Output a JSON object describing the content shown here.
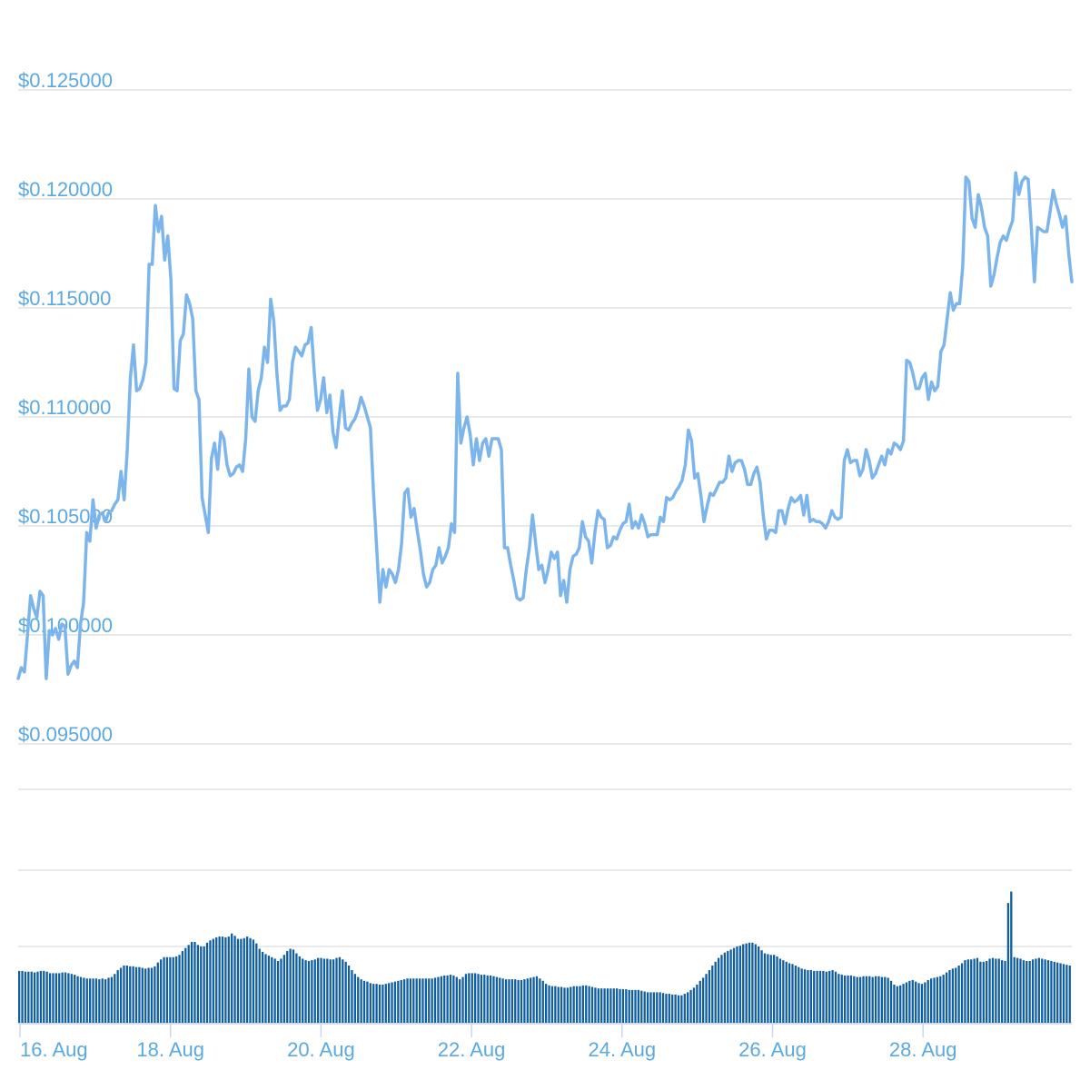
{
  "chart_data": [
    {
      "type": "line",
      "series": [
        {
          "values": [
            0.098,
            0.0985,
            0.0983,
            0.1,
            0.1018,
            0.1012,
            0.1008,
            0.102,
            0.1018,
            0.098,
            0.1002,
            0.1,
            0.1003,
            0.0998,
            0.1005,
            0.1004,
            0.0982,
            0.0986,
            0.0988,
            0.0985,
            0.1005,
            0.1015,
            0.1047,
            0.1043,
            0.1062,
            0.1049,
            0.1055,
            0.1056,
            0.1052,
            0.1056,
            0.1057,
            0.106,
            0.1062,
            0.1075,
            0.1062,
            0.1085,
            0.1118,
            0.1133,
            0.1112,
            0.1113,
            0.1117,
            0.1125,
            0.117,
            0.117,
            0.1197,
            0.1185,
            0.1192,
            0.1172,
            0.1183,
            0.1163,
            0.1113,
            0.1112,
            0.1135,
            0.1138,
            0.1156,
            0.1152,
            0.1145,
            0.1112,
            0.1108,
            0.1063,
            0.1055,
            0.1047,
            0.1081,
            0.1088,
            0.1076,
            0.1093,
            0.109,
            0.1078,
            0.1073,
            0.1074,
            0.1077,
            0.1078,
            0.1075,
            0.109,
            0.1122,
            0.11,
            0.1098,
            0.1112,
            0.1118,
            0.1132,
            0.1125,
            0.1154,
            0.1144,
            0.112,
            0.1103,
            0.1105,
            0.1105,
            0.1108,
            0.1125,
            0.1132,
            0.113,
            0.1128,
            0.1133,
            0.1134,
            0.1141,
            0.112,
            0.1103,
            0.1108,
            0.1118,
            0.1102,
            0.111,
            0.1093,
            0.1086,
            0.11,
            0.1112,
            0.1095,
            0.1094,
            0.1097,
            0.1099,
            0.1103,
            0.1109,
            0.1105,
            0.11,
            0.1095,
            0.1065,
            0.104,
            0.1015,
            0.103,
            0.1022,
            0.103,
            0.1028,
            0.1024,
            0.103,
            0.1042,
            0.1065,
            0.1067,
            0.1054,
            0.1058,
            0.1048,
            0.1039,
            0.1028,
            0.1022,
            0.1024,
            0.103,
            0.1032,
            0.104,
            0.1033,
            0.1036,
            0.104,
            0.1051,
            0.1047,
            0.112,
            0.1088,
            0.1095,
            0.11,
            0.1092,
            0.1078,
            0.109,
            0.108,
            0.1088,
            0.109,
            0.1082,
            0.109,
            0.109,
            0.109,
            0.1085,
            0.104,
            0.104,
            0.1032,
            0.1025,
            0.1017,
            0.1016,
            0.1017,
            0.103,
            0.104,
            0.1055,
            0.1042,
            0.103,
            0.1032,
            0.1024,
            0.103,
            0.1038,
            0.1035,
            0.1038,
            0.1018,
            0.1025,
            0.1015,
            0.103,
            0.1036,
            0.1037,
            0.104,
            0.1052,
            0.1045,
            0.1043,
            0.1033,
            0.1047,
            0.1057,
            0.1054,
            0.1053,
            0.104,
            0.1041,
            0.1045,
            0.1044,
            0.1048,
            0.1051,
            0.1052,
            0.106,
            0.1049,
            0.1052,
            0.1049,
            0.1055,
            0.1051,
            0.1045,
            0.1046,
            0.1046,
            0.1046,
            0.1054,
            0.1052,
            0.1063,
            0.1062,
            0.1063,
            0.1066,
            0.1068,
            0.1071,
            0.1078,
            0.1094,
            0.1089,
            0.1072,
            0.1074,
            0.1064,
            0.1052,
            0.1059,
            0.1065,
            0.1064,
            0.1067,
            0.107,
            0.107,
            0.1072,
            0.1082,
            0.1075,
            0.1079,
            0.108,
            0.108,
            0.1076,
            0.1069,
            0.1069,
            0.1074,
            0.1077,
            0.107,
            0.1055,
            0.1044,
            0.1048,
            0.1048,
            0.1047,
            0.1057,
            0.1057,
            0.1051,
            0.1058,
            0.1063,
            0.1061,
            0.1062,
            0.1064,
            0.1055,
            0.1064,
            0.1052,
            0.1053,
            0.1052,
            0.1052,
            0.1051,
            0.1049,
            0.1052,
            0.1057,
            0.1054,
            0.1053,
            0.1054,
            0.108,
            0.1085,
            0.1079,
            0.108,
            0.108,
            0.1073,
            0.1076,
            0.1085,
            0.108,
            0.1072,
            0.1074,
            0.1078,
            0.1082,
            0.1078,
            0.1085,
            0.1083,
            0.1088,
            0.1087,
            0.1085,
            0.1089,
            0.1126,
            0.1125,
            0.112,
            0.1113,
            0.1113,
            0.1118,
            0.112,
            0.1108,
            0.1116,
            0.1112,
            0.1114,
            0.113,
            0.1133,
            0.1145,
            0.1157,
            0.1149,
            0.1152,
            0.1152,
            0.1169,
            0.121,
            0.1208,
            0.1191,
            0.1187,
            0.1202,
            0.1196,
            0.1187,
            0.1183,
            0.116,
            0.1165,
            0.1173,
            0.118,
            0.1183,
            0.1181,
            0.1186,
            0.119,
            0.1212,
            0.1202,
            0.1208,
            0.121,
            0.1209,
            0.1187,
            0.1162,
            0.1187,
            0.1186,
            0.1185,
            0.1185,
            0.1194,
            0.1204,
            0.1198,
            0.1193,
            0.1187,
            0.1192,
            0.1175,
            0.1162
          ]
        }
      ],
      "y_ticks": [
        "$0.125000",
        "$0.120000",
        "$0.115000",
        "$0.110000",
        "$0.105000",
        "$0.100000",
        "$0.095000"
      ],
      "y_tick_values": [
        0.125,
        0.12,
        0.115,
        0.11,
        0.105,
        0.1,
        0.095
      ],
      "ylim": [
        0.095,
        0.125
      ],
      "grid": true
    },
    {
      "type": "bar",
      "volumes": [
        0.68,
        0.68,
        0.67,
        0.67,
        0.67,
        0.66,
        0.67,
        0.68,
        0.68,
        0.67,
        0.65,
        0.65,
        0.65,
        0.65,
        0.66,
        0.66,
        0.65,
        0.64,
        0.63,
        0.61,
        0.6,
        0.59,
        0.58,
        0.58,
        0.58,
        0.58,
        0.57,
        0.58,
        0.57,
        0.59,
        0.6,
        0.64,
        0.69,
        0.72,
        0.75,
        0.75,
        0.74,
        0.74,
        0.73,
        0.73,
        0.72,
        0.71,
        0.72,
        0.72,
        0.74,
        0.79,
        0.83,
        0.86,
        0.86,
        0.86,
        0.86,
        0.87,
        0.89,
        0.94,
        0.98,
        1.02,
        1.06,
        1.06,
        1.02,
        1.0,
        1.0,
        1.05,
        1.08,
        1.1,
        1.12,
        1.13,
        1.13,
        1.12,
        1.13,
        1.17,
        1.14,
        1.1,
        1.1,
        1.11,
        1.13,
        1.11,
        1.09,
        1.04,
        0.97,
        0.93,
        0.9,
        0.88,
        0.86,
        0.84,
        0.81,
        0.84,
        0.89,
        0.94,
        0.97,
        0.96,
        0.91,
        0.87,
        0.84,
        0.82,
        0.81,
        0.82,
        0.83,
        0.85,
        0.85,
        0.84,
        0.84,
        0.83,
        0.83,
        0.85,
        0.86,
        0.83,
        0.8,
        0.75,
        0.69,
        0.64,
        0.6,
        0.57,
        0.55,
        0.54,
        0.52,
        0.51,
        0.51,
        0.5,
        0.5,
        0.51,
        0.52,
        0.53,
        0.54,
        0.55,
        0.56,
        0.57,
        0.58,
        0.58,
        0.58,
        0.58,
        0.58,
        0.58,
        0.58,
        0.58,
        0.58,
        0.59,
        0.6,
        0.61,
        0.62,
        0.62,
        0.63,
        0.62,
        0.6,
        0.57,
        0.6,
        0.64,
        0.65,
        0.65,
        0.65,
        0.64,
        0.63,
        0.63,
        0.62,
        0.62,
        0.61,
        0.6,
        0.59,
        0.58,
        0.57,
        0.57,
        0.57,
        0.57,
        0.56,
        0.56,
        0.57,
        0.58,
        0.59,
        0.6,
        0.61,
        0.58,
        0.55,
        0.51,
        0.49,
        0.48,
        0.48,
        0.47,
        0.47,
        0.46,
        0.46,
        0.47,
        0.48,
        0.48,
        0.48,
        0.49,
        0.49,
        0.48,
        0.47,
        0.46,
        0.45,
        0.45,
        0.45,
        0.45,
        0.45,
        0.45,
        0.45,
        0.44,
        0.44,
        0.44,
        0.43,
        0.43,
        0.43,
        0.43,
        0.42,
        0.41,
        0.4,
        0.4,
        0.4,
        0.4,
        0.4,
        0.39,
        0.38,
        0.38,
        0.37,
        0.37,
        0.36,
        0.36,
        0.38,
        0.4,
        0.43,
        0.46,
        0.5,
        0.55,
        0.59,
        0.64,
        0.69,
        0.75,
        0.8,
        0.85,
        0.89,
        0.92,
        0.94,
        0.96,
        0.98,
        1.0,
        1.01,
        1.03,
        1.04,
        1.05,
        1.05,
        1.03,
        1.0,
        0.95,
        0.91,
        0.9,
        0.89,
        0.89,
        0.87,
        0.84,
        0.82,
        0.8,
        0.78,
        0.77,
        0.75,
        0.73,
        0.71,
        0.7,
        0.69,
        0.69,
        0.68,
        0.68,
        0.68,
        0.68,
        0.67,
        0.68,
        0.69,
        0.67,
        0.64,
        0.63,
        0.62,
        0.62,
        0.62,
        0.61,
        0.6,
        0.6,
        0.61,
        0.61,
        0.61,
        0.6,
        0.61,
        0.61,
        0.6,
        0.6,
        0.59,
        0.55,
        0.5,
        0.48,
        0.49,
        0.51,
        0.53,
        0.55,
        0.56,
        0.54,
        0.52,
        0.51,
        0.53,
        0.56,
        0.58,
        0.59,
        0.6,
        0.61,
        0.63,
        0.66,
        0.69,
        0.71,
        0.72,
        0.75,
        0.78,
        0.82,
        0.83,
        0.83,
        0.84,
        0.85,
        0.8,
        0.8,
        0.81,
        0.84,
        0.85,
        0.84,
        0.84,
        0.82,
        0.81,
        1.57,
        1.72,
        0.86,
        0.85,
        0.84,
        0.82,
        0.81,
        0.81,
        0.83,
        0.84,
        0.85,
        0.84,
        0.83,
        0.82,
        0.81,
        0.8,
        0.79,
        0.78,
        0.77,
        0.76,
        0.75
      ],
      "ylim": [
        0,
        2
      ]
    }
  ],
  "x_axis": {
    "labels": [
      "16. Aug",
      "18. Aug",
      "20. Aug",
      "22. Aug",
      "24. Aug",
      "26. Aug",
      "28. Aug"
    ]
  },
  "colors": {
    "line": "#7cb5ec",
    "bar": "#0f5ea0",
    "tick_text": "#5aa9e0",
    "grid": "#e2e2e2"
  }
}
